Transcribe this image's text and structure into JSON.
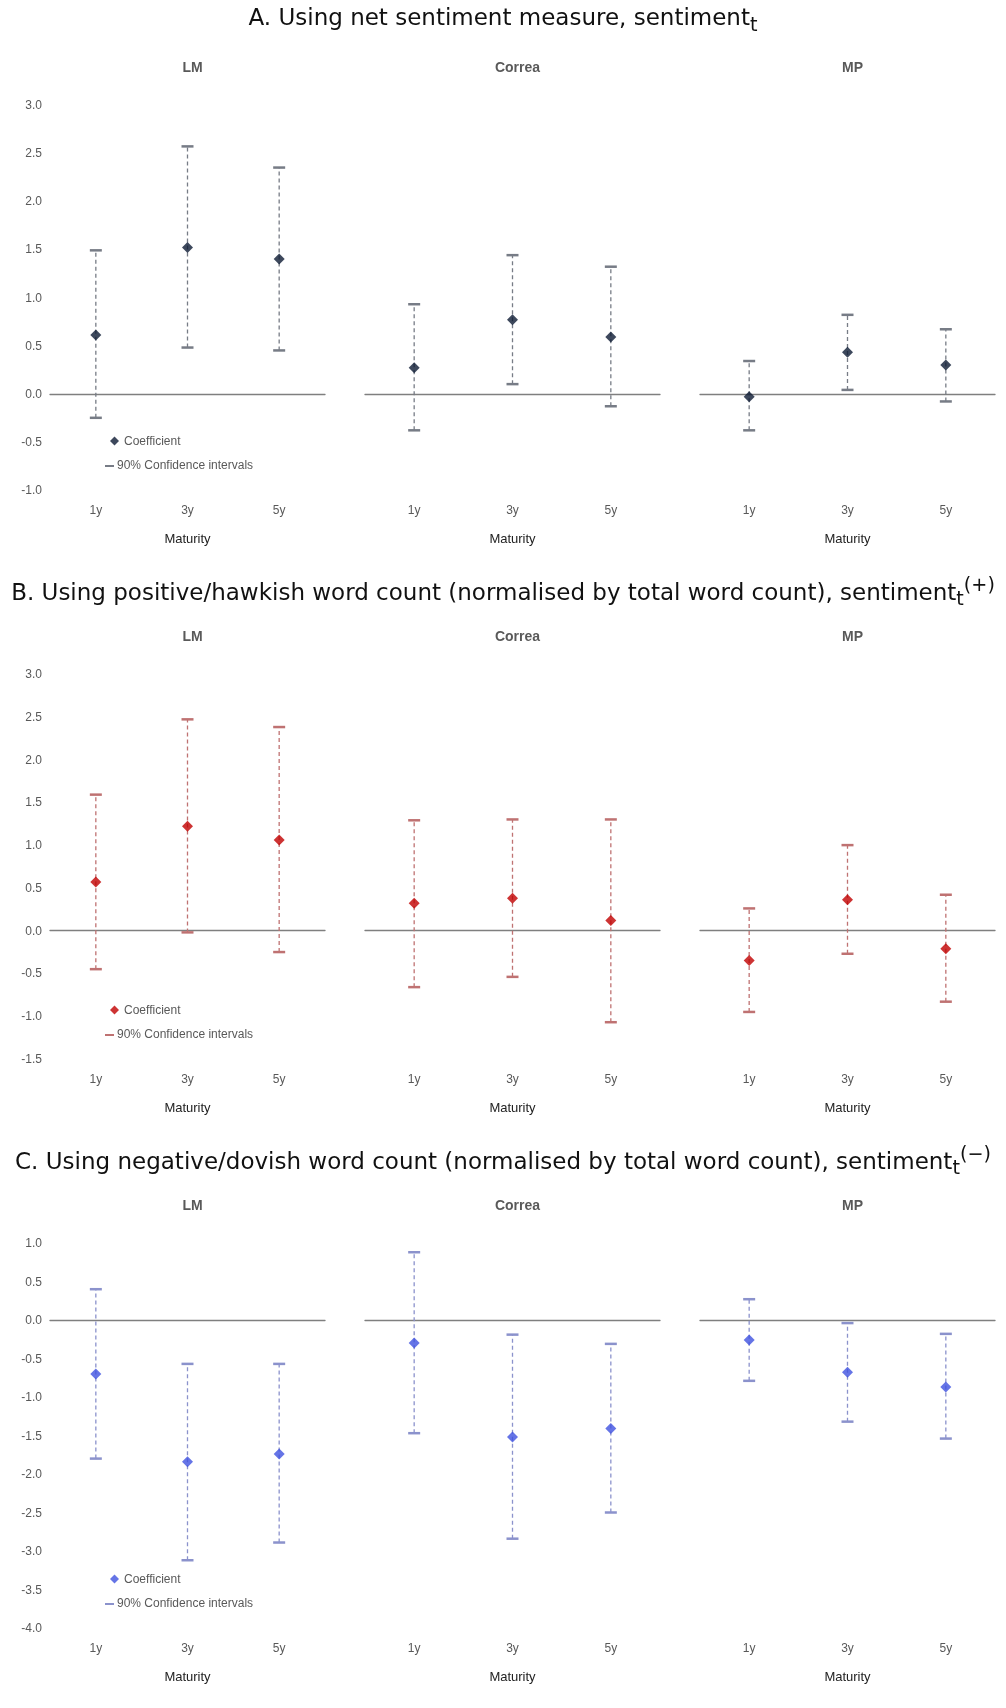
{
  "chart_data": [
    {
      "type": "scatter",
      "title": "LM",
      "annotations": [
        "A. Using net sentiment measure, sentiment$_{t}$",
        "90% Confidence intervals"
      ],
      "categories": [
        "1y",
        "3y",
        "5y"
      ],
      "xlabel": "Maturity",
      "ylim": [
        -1,
        3
      ],
      "yticks": [
        {
          "value": -1,
          "label": "-1.0"
        },
        {
          "value": -0.5,
          "label": "-0.5"
        },
        {
          "value": 0,
          "label": "0.0"
        },
        {
          "value": 0.5,
          "label": "0.5"
        },
        {
          "value": 1,
          "label": "1.0"
        },
        {
          "value": 1.5,
          "label": "1.5"
        },
        {
          "value": 2,
          "label": "2.0"
        },
        {
          "value": 2.5,
          "label": "2.5"
        },
        {
          "value": 3,
          "label": "3.0"
        }
      ],
      "legend": "bottom left",
      "marker": "diamond",
      "series": [
        {
          "name": "Coefficient",
          "color": "#0d1a33",
          "values": [
            0.61,
            1.52,
            1.4
          ],
          "errors": [
            [
              -0.25,
              1.49
            ],
            [
              0.48,
              2.57
            ],
            [
              0.45,
              2.35
            ]
          ]
        }
      ]
    },
    {
      "type": "scatter",
      "title": "Correa",
      "categories": [
        "1y",
        "3y",
        "5y"
      ],
      "xlabel": "Maturity",
      "ylim": [
        -1,
        3
      ],
      "tick_labels": "x",
      "marker": "diamond",
      "series": [
        {
          "color": "#0d1a33",
          "values": [
            0.27,
            0.77,
            0.59
          ],
          "errors": [
            [
              -0.38,
              0.93
            ],
            [
              0.1,
              1.44
            ],
            [
              -0.13,
              1.32
            ]
          ]
        }
      ]
    },
    {
      "type": "scatter",
      "title": "MP",
      "categories": [
        "1y",
        "3y",
        "5y"
      ],
      "xlabel": "Maturity",
      "ylim": [
        -1,
        3
      ],
      "tick_labels": "x",
      "marker": "diamond",
      "series": [
        {
          "color": "#0d1a33",
          "values": [
            -0.03,
            0.43,
            0.3
          ],
          "errors": [
            [
              -0.38,
              0.34
            ],
            [
              0.04,
              0.82
            ],
            [
              -0.08,
              0.67
            ]
          ]
        }
      ]
    },
    {
      "type": "scatter",
      "title": "LM",
      "annotations": [
        "B. Using positive/hawkish word count (normalised by total word count), sentiment$_{t}$$^{(+)}$",
        "90% Confidence intervals"
      ],
      "categories": [
        "1y",
        "3y",
        "5y"
      ],
      "xlabel": "Maturity",
      "ylim": [
        -1.5,
        3
      ],
      "yticks": [
        {
          "value": -1.5,
          "label": "-1.5"
        },
        {
          "value": -1,
          "label": "-1.0"
        },
        {
          "value": -0.5,
          "label": "-0.5"
        },
        {
          "value": 0,
          "label": "0.0"
        },
        {
          "value": 0.5,
          "label": "0.5"
        },
        {
          "value": 1,
          "label": "1.0"
        },
        {
          "value": 1.5,
          "label": "1.5"
        },
        {
          "value": 2,
          "label": "2.0"
        },
        {
          "value": 2.5,
          "label": "2.5"
        },
        {
          "value": 3,
          "label": "3.0"
        }
      ],
      "legend": "bottom left",
      "marker": "diamond",
      "series": [
        {
          "name": "Coefficient",
          "color": "#c00000",
          "values": [
            0.57,
            1.22,
            1.06
          ],
          "errors": [
            [
              -0.45,
              1.59
            ],
            [
              -0.02,
              2.47
            ],
            [
              -0.25,
              2.38
            ]
          ]
        }
      ]
    },
    {
      "type": "scatter",
      "title": "Correa",
      "categories": [
        "1y",
        "3y",
        "5y"
      ],
      "xlabel": "Maturity",
      "ylim": [
        -1.5,
        3
      ],
      "tick_labels": "x",
      "marker": "diamond",
      "series": [
        {
          "color": "#c00000",
          "values": [
            0.32,
            0.38,
            0.12
          ],
          "errors": [
            [
              -0.66,
              1.29
            ],
            [
              -0.54,
              1.3
            ],
            [
              -1.07,
              1.3
            ]
          ]
        }
      ]
    },
    {
      "type": "scatter",
      "title": "MP",
      "categories": [
        "1y",
        "3y",
        "5y"
      ],
      "xlabel": "Maturity",
      "ylim": [
        -1.5,
        3
      ],
      "tick_labels": "x",
      "marker": "diamond",
      "series": [
        {
          "color": "#c00000",
          "values": [
            -0.35,
            0.36,
            -0.21
          ],
          "errors": [
            [
              -0.95,
              0.26
            ],
            [
              -0.27,
              1.0
            ],
            [
              -0.83,
              0.42
            ]
          ]
        }
      ]
    },
    {
      "type": "scatter",
      "title": "LM",
      "annotations": [
        "C. Using negative/dovish word count (normalised by total word count), sentiment$_{t}$$^{(−)}$",
        "90% Confidence intervals"
      ],
      "categories": [
        "1y",
        "3y",
        "5y"
      ],
      "xlabel": "Maturity",
      "ylim": [
        -4,
        1
      ],
      "yticks": [
        {
          "value": -4,
          "label": "-4.0"
        },
        {
          "value": -3.5,
          "label": "-3.5"
        },
        {
          "value": -3,
          "label": "-3.0"
        },
        {
          "value": -2.5,
          "label": "-2.5"
        },
        {
          "value": -2,
          "label": "-2.0"
        },
        {
          "value": -1.5,
          "label": "-1.5"
        },
        {
          "value": -1,
          "label": "-1.0"
        },
        {
          "value": -0.5,
          "label": "-0.5"
        },
        {
          "value": 0,
          "label": "0.0"
        },
        {
          "value": 0.5,
          "label": "0.5"
        },
        {
          "value": 1,
          "label": "1.0"
        }
      ],
      "legend": "bottom left",
      "marker": "diamond",
      "series": [
        {
          "name": "Coefficient",
          "color": "#3f51e0",
          "values": [
            -0.7,
            -1.84,
            -1.74
          ],
          "errors": [
            [
              -1.8,
              0.4
            ],
            [
              -3.12,
              -0.57
            ],
            [
              -2.89,
              -0.57
            ]
          ]
        }
      ]
    },
    {
      "type": "scatter",
      "title": "Correa",
      "categories": [
        "1y",
        "3y",
        "5y"
      ],
      "xlabel": "Maturity",
      "ylim": [
        -4,
        1
      ],
      "tick_labels": "x",
      "marker": "diamond",
      "series": [
        {
          "color": "#3f51e0",
          "values": [
            -0.3,
            -1.52,
            -1.41
          ],
          "errors": [
            [
              -1.47,
              0.88
            ],
            [
              -2.84,
              -0.19
            ],
            [
              -2.5,
              -0.31
            ]
          ]
        }
      ]
    },
    {
      "type": "scatter",
      "title": "MP",
      "categories": [
        "1y",
        "3y",
        "5y"
      ],
      "xlabel": "Maturity",
      "ylim": [
        -4,
        1
      ],
      "tick_labels": "x",
      "marker": "diamond",
      "series": [
        {
          "color": "#3f51e0",
          "values": [
            -0.26,
            -0.68,
            -0.87
          ],
          "errors": [
            [
              -0.79,
              0.27
            ],
            [
              -1.32,
              -0.04
            ],
            [
              -1.54,
              -0.18
            ]
          ]
        }
      ]
    }
  ]
}
